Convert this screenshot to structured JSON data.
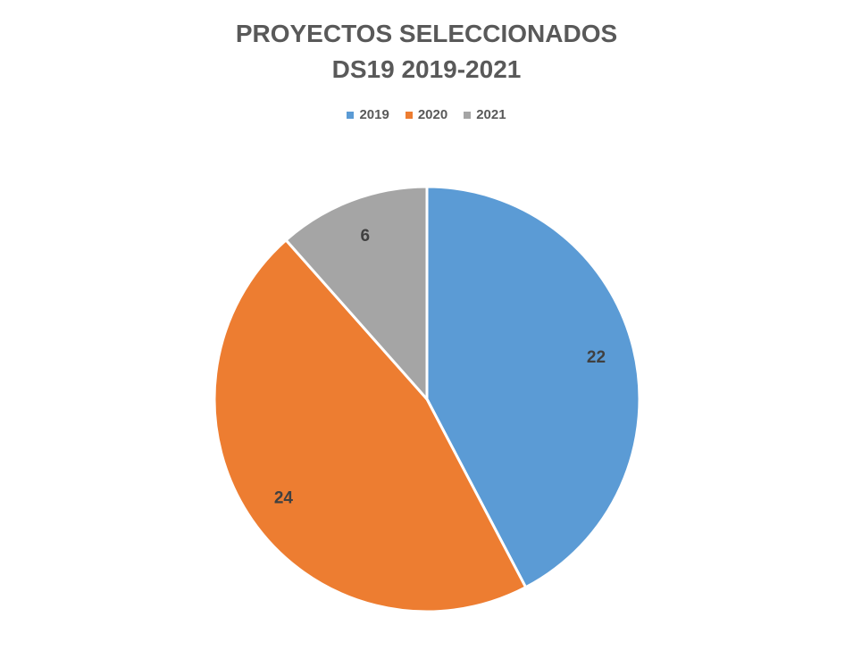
{
  "chart_data": {
    "type": "pie",
    "title_lines": [
      "PROYECTOS SELECCIONADOS",
      "DS19 2019-2021"
    ],
    "categories": [
      "2019",
      "2020",
      "2021"
    ],
    "values": [
      22,
      24,
      6
    ],
    "colors": [
      "#5b9bd5",
      "#ed7d31",
      "#a5a5a5"
    ],
    "legend_position": "top",
    "data_labels": [
      "22",
      "24",
      "6"
    ]
  }
}
